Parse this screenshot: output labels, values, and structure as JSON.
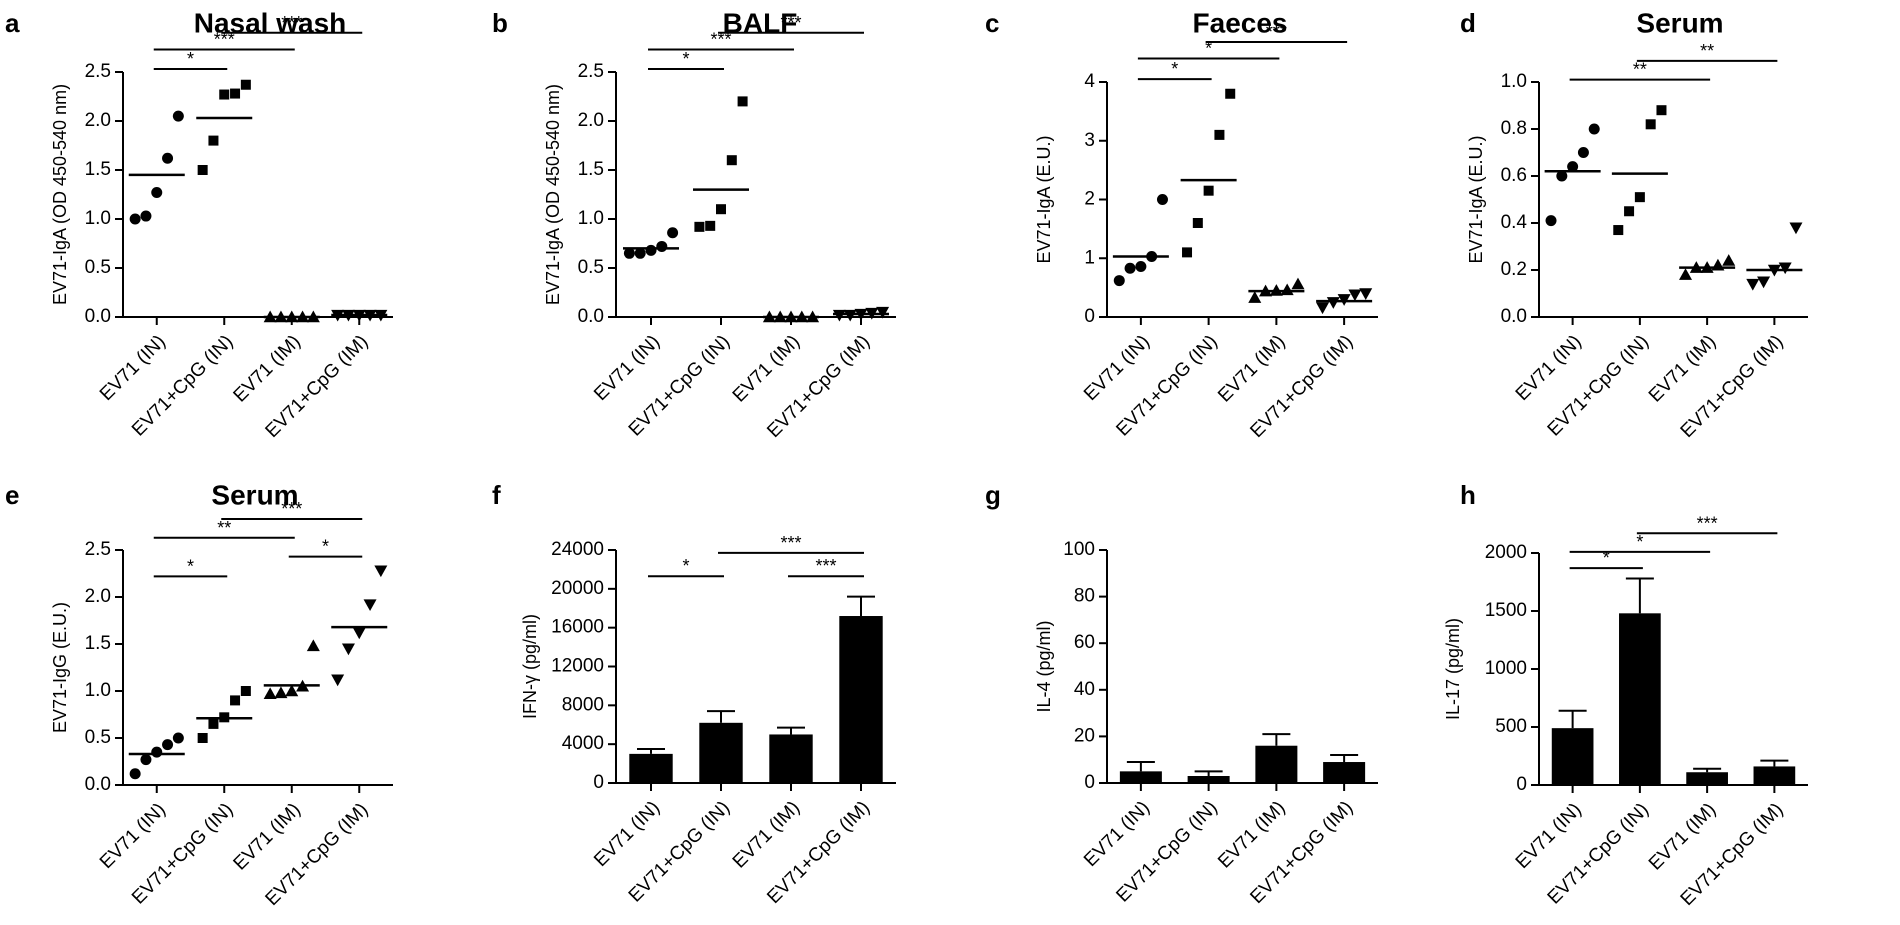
{
  "figure": {
    "chart_data": [
      {
        "id": "a",
        "letter": "a",
        "type": "scatter",
        "title": "Nasal wash",
        "ylabel": "EV71-IgA (OD 450-540 nm)",
        "xlabel": "",
        "ylim": [
          0,
          2.5
        ],
        "yticks": [
          0.0,
          0.5,
          1.0,
          1.5,
          2.0,
          2.5
        ],
        "ytick_labels": [
          "0.0",
          "0.5",
          "1.0",
          "1.5",
          "2.0",
          "2.5"
        ],
        "categories": [
          "EV71 (IN)",
          "EV71+CpG (IN)",
          "EV71 (IM)",
          "EV71+CpG (IM)"
        ],
        "markers": [
          "circle",
          "square",
          "triangle-up",
          "triangle-down"
        ],
        "points": [
          [
            1.0,
            1.03,
            1.27,
            1.62,
            2.05
          ],
          [
            1.5,
            1.8,
            2.27,
            2.28,
            2.37
          ],
          [
            0.0,
            0.0,
            0.0,
            0.0,
            0.0
          ],
          [
            0.02,
            0.02,
            0.02,
            0.02,
            0.02
          ]
        ],
        "means": [
          1.45,
          2.03,
          0.0,
          0.02
        ],
        "significance": [
          {
            "from": 0,
            "to": 1,
            "y": 2.53,
            "label": "*"
          },
          {
            "from": 0,
            "to": 2,
            "y": 2.73,
            "label": "***"
          },
          {
            "from": 1,
            "to": 3,
            "y": 2.9,
            "label": "***"
          }
        ]
      },
      {
        "id": "b",
        "letter": "b",
        "type": "scatter",
        "title": "BALF",
        "ylabel": "EV71-IgA (OD 450-540 nm)",
        "xlabel": "",
        "ylim": [
          0,
          2.5
        ],
        "yticks": [
          0.0,
          0.5,
          1.0,
          1.5,
          2.0,
          2.5
        ],
        "ytick_labels": [
          "0.0",
          "0.5",
          "1.0",
          "1.5",
          "2.0",
          "2.5"
        ],
        "categories": [
          "EV71 (IN)",
          "EV71+CpG (IN)",
          "EV71 (IM)",
          "EV71+CpG (IM)"
        ],
        "markers": [
          "circle",
          "square",
          "triangle-up",
          "triangle-down"
        ],
        "points": [
          [
            0.65,
            0.65,
            0.68,
            0.72,
            0.86
          ],
          [
            0.92,
            0.93,
            1.1,
            1.6,
            2.2
          ],
          [
            0.0,
            0.0,
            0.0,
            0.0,
            0.0
          ],
          [
            0.02,
            0.02,
            0.03,
            0.04,
            0.05
          ]
        ],
        "means": [
          0.7,
          1.3,
          0.0,
          0.03
        ],
        "significance": [
          {
            "from": 0,
            "to": 1,
            "y": 2.53,
            "label": "*"
          },
          {
            "from": 0,
            "to": 2,
            "y": 2.73,
            "label": "***"
          },
          {
            "from": 1,
            "to": 3,
            "y": 2.9,
            "label": "***"
          }
        ]
      },
      {
        "id": "c",
        "letter": "c",
        "type": "scatter",
        "title": "Faeces",
        "ylabel": "EV71-IgA (E.U.)",
        "xlabel": "",
        "ylim": [
          0,
          4
        ],
        "yticks": [
          0,
          1,
          2,
          3,
          4
        ],
        "ytick_labels": [
          "0",
          "1",
          "2",
          "3",
          "4"
        ],
        "categories": [
          "EV71 (IN)",
          "EV71+CpG (IN)",
          "EV71 (IM)",
          "EV71+CpG (IM)"
        ],
        "markers": [
          "circle",
          "square",
          "triangle-up",
          "triangle-down"
        ],
        "points": [
          [
            0.62,
            0.83,
            0.86,
            1.03,
            2.0
          ],
          [
            1.1,
            1.6,
            2.15,
            3.1,
            3.8
          ],
          [
            0.33,
            0.44,
            0.45,
            0.46,
            0.56
          ],
          [
            0.16,
            0.25,
            0.3,
            0.38,
            0.4
          ]
        ],
        "means": [
          1.03,
          2.33,
          0.44,
          0.27
        ],
        "significance": [
          {
            "from": 0,
            "to": 1,
            "y": 4.05,
            "label": "*"
          },
          {
            "from": 0,
            "to": 2,
            "y": 4.4,
            "label": "*"
          },
          {
            "from": 1,
            "to": 3,
            "y": 4.68,
            "label": "***"
          }
        ]
      },
      {
        "id": "d",
        "letter": "d",
        "type": "scatter",
        "title": "Serum",
        "ylabel": "EV71-IgA (E.U.)",
        "xlabel": "",
        "ylim": [
          0,
          1.0
        ],
        "yticks": [
          0.0,
          0.2,
          0.4,
          0.6,
          0.8,
          1.0
        ],
        "ytick_labels": [
          "0.0",
          "0.2",
          "0.4",
          "0.6",
          "0.8",
          "1.0"
        ],
        "categories": [
          "EV71 (IN)",
          "EV71+CpG (IN)",
          "EV71 (IM)",
          "EV71+CpG (IM)"
        ],
        "markers": [
          "circle",
          "square",
          "triangle-up",
          "triangle-down"
        ],
        "points": [
          [
            0.41,
            0.6,
            0.64,
            0.7,
            0.8
          ],
          [
            0.37,
            0.45,
            0.51,
            0.82,
            0.88
          ],
          [
            0.18,
            0.21,
            0.21,
            0.22,
            0.24
          ],
          [
            0.14,
            0.15,
            0.2,
            0.21,
            0.38
          ]
        ],
        "means": [
          0.62,
          0.61,
          0.21,
          0.2
        ],
        "significance": [
          {
            "from": 0,
            "to": 2,
            "y": 1.01,
            "label": "**"
          },
          {
            "from": 1,
            "to": 3,
            "y": 1.09,
            "label": "**"
          }
        ]
      },
      {
        "id": "e",
        "letter": "e",
        "type": "scatter",
        "title": "Serum",
        "ylabel": "EV71-IgG (E.U.)",
        "xlabel": "",
        "ylim": [
          0,
          2.5
        ],
        "yticks": [
          0.0,
          0.5,
          1.0,
          1.5,
          2.0,
          2.5
        ],
        "ytick_labels": [
          "0.0",
          "0.5",
          "1.0",
          "1.5",
          "2.0",
          "2.5"
        ],
        "categories": [
          "EV71 (IN)",
          "EV71+CpG (IN)",
          "EV71 (IM)",
          "EV71+CpG (IM)"
        ],
        "markers": [
          "circle",
          "square",
          "triangle-up",
          "triangle-down"
        ],
        "points": [
          [
            0.12,
            0.27,
            0.35,
            0.43,
            0.5
          ],
          [
            0.5,
            0.65,
            0.72,
            0.9,
            1.0
          ],
          [
            0.97,
            0.98,
            1.0,
            1.05,
            1.48
          ],
          [
            1.12,
            1.45,
            1.62,
            1.92,
            2.28
          ]
        ],
        "means": [
          0.33,
          0.71,
          1.06,
          1.68
        ],
        "significance": [
          {
            "from": 0,
            "to": 1,
            "y": 2.22,
            "label": "*"
          },
          {
            "from": 2,
            "to": 3,
            "y": 2.43,
            "label": "*"
          },
          {
            "from": 0,
            "to": 2,
            "y": 2.63,
            "label": "**"
          },
          {
            "from": 1,
            "to": 3,
            "y": 2.83,
            "label": "***"
          }
        ]
      },
      {
        "id": "f",
        "letter": "f",
        "type": "bar",
        "title": "",
        "ylabel": "IFN-γ (pg/ml)",
        "xlabel": "",
        "ylim": [
          0,
          24000
        ],
        "yticks": [
          0,
          4000,
          8000,
          12000,
          16000,
          20000,
          24000
        ],
        "ytick_labels": [
          "0",
          "4000",
          "8000",
          "12000",
          "16000",
          "20000",
          "24000"
        ],
        "categories": [
          "EV71 (IN)",
          "EV71+CpG (IN)",
          "EV71 (IM)",
          "EV71+CpG (IM)"
        ],
        "values": [
          3000,
          6200,
          5000,
          17200
        ],
        "errors": [
          500,
          1200,
          700,
          2000
        ],
        "significance": [
          {
            "from": 0,
            "to": 1,
            "y": 21300,
            "label": "*"
          },
          {
            "from": 2,
            "to": 3,
            "y": 21300,
            "label": "***"
          },
          {
            "from": 1,
            "to": 3,
            "y": 23700,
            "label": "***"
          }
        ]
      },
      {
        "id": "g",
        "letter": "g",
        "type": "bar",
        "title": "",
        "ylabel": "IL-4 (pg/ml)",
        "xlabel": "",
        "ylim": [
          0,
          100
        ],
        "yticks": [
          0,
          20,
          40,
          60,
          80,
          100
        ],
        "ytick_labels": [
          "0",
          "20",
          "40",
          "60",
          "80",
          "100"
        ],
        "categories": [
          "EV71 (IN)",
          "EV71+CpG (IN)",
          "EV71 (IM)",
          "EV71+CpG (IM)"
        ],
        "values": [
          5,
          3,
          16,
          9
        ],
        "errors": [
          4,
          2,
          5,
          3
        ],
        "significance": []
      },
      {
        "id": "h",
        "letter": "h",
        "type": "bar",
        "title": "",
        "ylabel": "IL-17 (pg/ml)",
        "xlabel": "",
        "ylim": [
          0,
          2000
        ],
        "yticks": [
          0,
          500,
          1000,
          1500,
          2000
        ],
        "ytick_labels": [
          "0",
          "500",
          "1000",
          "1500",
          "2000"
        ],
        "categories": [
          "EV71 (IN)",
          "EV71+CpG (IN)",
          "EV71 (IM)",
          "EV71+CpG (IM)"
        ],
        "values": [
          490,
          1480,
          110,
          160
        ],
        "errors": [
          150,
          300,
          30,
          50
        ],
        "significance": [
          {
            "from": 0,
            "to": 1,
            "y": 1870,
            "label": "*"
          },
          {
            "from": 0,
            "to": 2,
            "y": 2010,
            "label": "*"
          },
          {
            "from": 1,
            "to": 3,
            "y": 2170,
            "label": "***"
          }
        ]
      }
    ]
  }
}
